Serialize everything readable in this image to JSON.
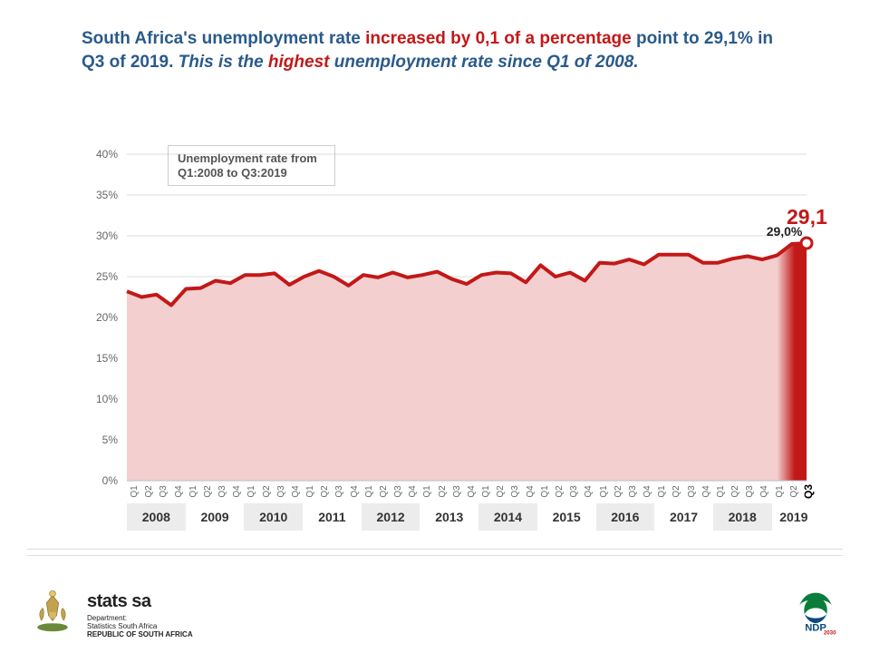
{
  "headline": {
    "p1": "South Africa's unemployment rate ",
    "em1": "increased by 0,1 of a percentage",
    "p2": " point to 29,1% in Q3 of 2019. ",
    "p3_ital": "This is the ",
    "em2_ital": "highest",
    "p4_ital": " unemployment rate since Q1 of 2008."
  },
  "legend": "Unemployment rate from Q1:2008 to Q3:2019",
  "chart": {
    "type": "area-line",
    "background": "#ffffff",
    "area_fill": "#f3cfcf",
    "area_fill_highlight": "#c31818",
    "line_color": "#c31818",
    "line_width": 4,
    "marker_stroke": "#c31818",
    "marker_fill": "#ffffff",
    "marker_radius": 6,
    "axis_color": "#bdbdbd",
    "tick_label_color": "#666666",
    "tick_label_fontsize": 12,
    "ylim": [
      0,
      40
    ],
    "ytick_step": 5,
    "yticks": [
      0,
      5,
      10,
      15,
      20,
      25,
      30,
      35,
      40
    ],
    "ytick_labels": [
      "0%",
      "5%",
      "10%",
      "15%",
      "20%",
      "25%",
      "30%",
      "35%",
      "40%"
    ],
    "years": [
      2008,
      2009,
      2010,
      2011,
      2012,
      2013,
      2014,
      2015,
      2016,
      2017,
      2018,
      2019
    ],
    "quarters_per_year": 4,
    "last_year_quarters": 3,
    "values": [
      23.2,
      22.5,
      22.8,
      21.5,
      23.5,
      23.6,
      24.5,
      24.2,
      25.2,
      25.2,
      25.4,
      24.0,
      25.0,
      25.7,
      25.0,
      23.9,
      25.2,
      24.9,
      25.5,
      24.9,
      25.2,
      25.6,
      24.7,
      24.1,
      25.2,
      25.5,
      25.4,
      24.3,
      26.4,
      25.0,
      25.5,
      24.5,
      26.7,
      26.6,
      27.1,
      26.5,
      27.7,
      27.7,
      27.7,
      26.7,
      26.7,
      27.2,
      27.5,
      27.1,
      27.6,
      29.0,
      29.1
    ],
    "highlight_last_n": 3,
    "callouts": {
      "prev": {
        "label": "29,0%",
        "index": 45
      },
      "final": {
        "label": "29,1",
        "index": 46
      }
    },
    "xcats": [
      "Q1",
      "Q2",
      "Q3",
      "Q4"
    ],
    "last_xcat_highlight": "Q3"
  },
  "footer": {
    "org_title": "stats sa",
    "org_sub1": "Department:",
    "org_sub2": "Statistics South Africa",
    "org_sub3": "REPUBLIC OF SOUTH AFRICA",
    "ndp_label": "NDP",
    "ndp_year": "2030"
  },
  "colors": {
    "headline_blue": "#2a5a8a",
    "headline_red": "#c31818",
    "ndp_green": "#0a7d3b",
    "ndp_blue": "#0a4a7d",
    "ndp_red": "#c31818",
    "crest_gold": "#c2a24a"
  }
}
